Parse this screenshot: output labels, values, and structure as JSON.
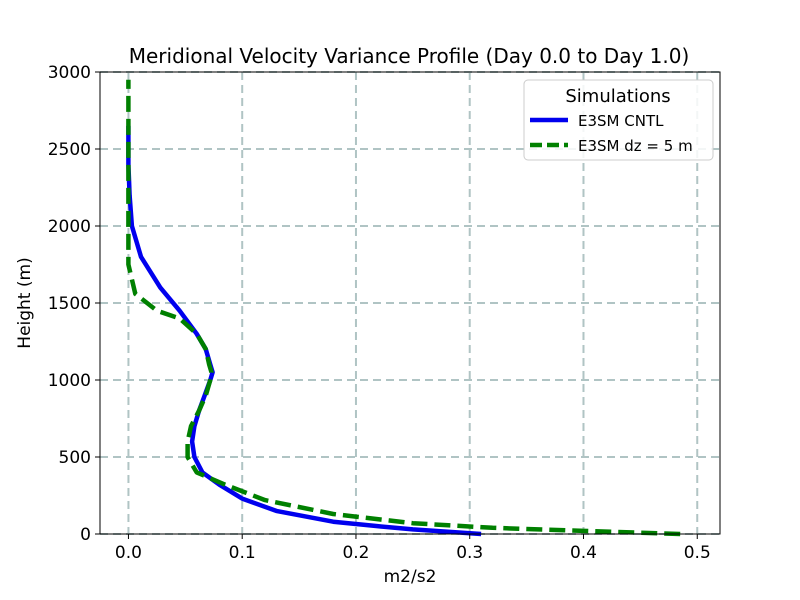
{
  "chart_data": {
    "type": "line",
    "title": "Meridional Velocity Variance Profile (Day 0.0 to Day 1.0)",
    "xlabel": "m2/s2",
    "ylabel": "Height (m)",
    "xlim": [
      -0.025,
      0.52
    ],
    "ylim": [
      0,
      3000
    ],
    "xticks": [
      0.0,
      0.1,
      0.2,
      0.3,
      0.4,
      0.5
    ],
    "xtick_labels": [
      "0.0",
      "0.1",
      "0.2",
      "0.3",
      "0.4",
      "0.5"
    ],
    "yticks": [
      0,
      500,
      1000,
      1500,
      2000,
      2500,
      3000
    ],
    "ytick_labels": [
      "0",
      "500",
      "1000",
      "1500",
      "2000",
      "2500",
      "3000"
    ],
    "grid": true,
    "legend": {
      "title": "Simulations",
      "location": "upper right"
    },
    "series": [
      {
        "name": "E3SM CNTL",
        "color": "#0000ee",
        "style": "solid",
        "x": [
          0.31,
          0.25,
          0.22,
          0.18,
          0.13,
          0.1,
          0.08,
          0.065,
          0.058,
          0.056,
          0.058,
          0.062,
          0.067,
          0.072,
          0.074,
          0.072,
          0.068,
          0.06,
          0.045,
          0.028,
          0.011,
          0.003,
          0.001,
          0.0,
          0.0,
          0.0,
          0.0
        ],
        "y": [
          0,
          30,
          50,
          80,
          150,
          230,
          320,
          400,
          500,
          600,
          700,
          800,
          900,
          1000,
          1050,
          1100,
          1200,
          1300,
          1450,
          1600,
          1800,
          2000,
          2200,
          2400,
          2550,
          2600,
          2650
        ]
      },
      {
        "name": "E3SM dz = 5 m",
        "color": "#008000",
        "style": "dashed",
        "x": [
          0.485,
          0.4,
          0.32,
          0.25,
          0.18,
          0.12,
          0.085,
          0.06,
          0.052,
          0.052,
          0.055,
          0.062,
          0.068,
          0.072,
          0.073,
          0.071,
          0.068,
          0.06,
          0.045,
          0.025,
          0.006,
          0.0,
          0.0,
          0.0,
          0.0,
          0.0,
          0.0
        ],
        "y": [
          0,
          20,
          40,
          70,
          130,
          220,
          320,
          400,
          500,
          600,
          700,
          800,
          900,
          1000,
          1050,
          1100,
          1200,
          1300,
          1400,
          1450,
          1560,
          1750,
          2000,
          2250,
          2500,
          2750,
          2950
        ]
      }
    ]
  }
}
